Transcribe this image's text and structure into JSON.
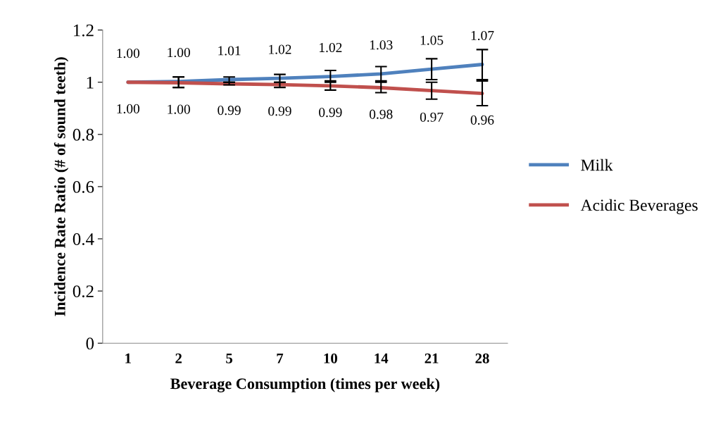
{
  "chart_data": {
    "type": "line",
    "xlabel": "Beverage Consumption (times per week)",
    "ylabel": "Incidence Rate Ratio (# of sound teeth)",
    "categories": [
      "1",
      "2",
      "5",
      "7",
      "10",
      "14",
      "21",
      "28"
    ],
    "series": [
      {
        "name": "Milk",
        "color": "#4f81bd",
        "values": [
          1.0,
          1.003,
          1.01,
          1.015,
          1.022,
          1.032,
          1.05,
          1.068
        ],
        "value_labels": [
          "1.00",
          "1.00",
          "1.01",
          "1.02",
          "1.02",
          "1.03",
          "1.05",
          "1.07"
        ],
        "errors": [
          null,
          [
            0.98,
            1.02
          ],
          [
            1.0,
            1.02
          ],
          [
            1.0,
            1.03
          ],
          [
            1.0,
            1.045
          ],
          [
            1.0,
            1.06
          ],
          [
            1.01,
            1.09
          ],
          [
            1.01,
            1.125
          ]
        ]
      },
      {
        "name": "Acidic Beverages",
        "color": "#c0504d",
        "values": [
          1.0,
          0.998,
          0.994,
          0.991,
          0.986,
          0.979,
          0.968,
          0.957
        ],
        "value_labels": [
          "1.00",
          "1.00",
          "0.99",
          "0.99",
          "0.99",
          "0.98",
          "0.97",
          "0.96"
        ],
        "errors": [
          null,
          [
            0.98,
            1.02
          ],
          [
            0.99,
            1.0
          ],
          [
            0.98,
            1.0
          ],
          [
            0.97,
            1.005
          ],
          [
            0.96,
            1.005
          ],
          [
            0.935,
            1.0
          ],
          [
            0.91,
            1.005
          ]
        ]
      }
    ],
    "ylim": [
      0,
      1.2
    ],
    "yticks": [
      0,
      {
        "value": 0.2,
        "label": "0.2"
      },
      {
        "value": 0.4,
        "label": "0.4"
      },
      {
        "value": 0.6,
        "label": "0.6"
      },
      {
        "value": 0.8,
        "label": "0.8"
      },
      1,
      {
        "value": 1.2,
        "label": "1.2"
      }
    ],
    "legend": "right",
    "grid": false,
    "marker": "none",
    "line_style": "solid"
  }
}
